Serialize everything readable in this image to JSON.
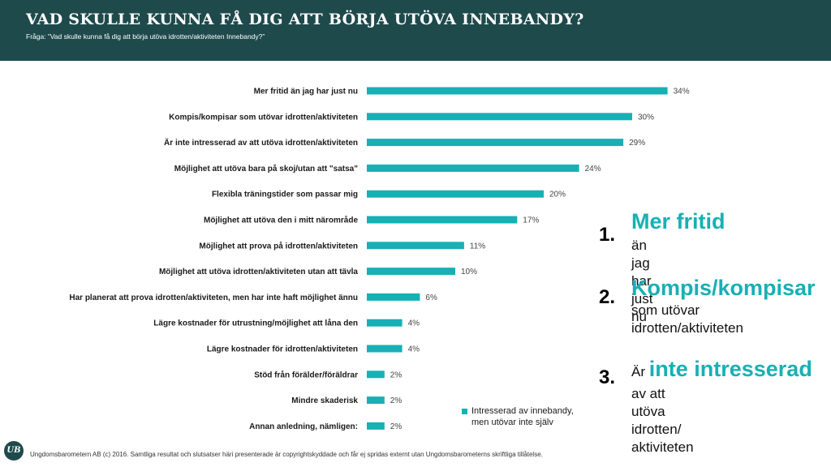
{
  "header": {
    "title": "VAD SKULLE KUNNA FÅ DIG ATT BÖRJA UTÖVA INNEBANDY?",
    "subtitle": "Fråga: ”Vad skulle kunna få dig att börja utöva idrotten/aktiviteten Innebandy?”"
  },
  "chart_data": {
    "type": "bar",
    "orientation": "horizontal",
    "categories": [
      "Mer fritid än jag har just nu",
      "Kompis/kompisar som utövar idrotten/aktiviteten",
      "Är inte intresserad av att utöva idrotten/aktiviteten",
      "Möjlighet att utöva bara på skoj/utan att \"satsa\"",
      "Flexibla träningstider som passar mig",
      "Möjlighet att utöva den i mitt närområde",
      "Möjlighet att  prova på idrotten/aktiviteten",
      "Möjlighet att utöva idrotten/aktiviteten utan att tävla",
      "Har planerat att prova idrotten/aktiviteten, men har inte haft möjlighet ännu",
      "Lägre kostnader för  utrustning/möjlighet att låna den",
      "Lägre kostnader för idrotten/aktiviteten",
      "Stöd från förälder/föräldrar",
      "Mindre skaderisk",
      "Annan anledning, nämligen:"
    ],
    "series": [
      {
        "name": "Intresserad av innebandy, men utövar inte själv",
        "values": [
          34,
          30,
          29,
          24,
          20,
          17,
          11,
          10,
          6,
          4,
          4,
          2,
          2,
          2
        ],
        "labels": [
          "34%",
          "30%",
          "29%",
          "24%",
          "20%",
          "17%",
          "11%",
          "10%",
          "6%",
          "4%",
          "4%",
          "2%",
          "2%",
          "2%"
        ],
        "color": "#17b0b4"
      }
    ],
    "xlim": [
      0,
      40
    ],
    "grid": false,
    "legend_position": "bottom-right"
  },
  "legend": {
    "line1": "Intresserad av innebandy,",
    "line2": "men utövar inte själv"
  },
  "ranking": [
    {
      "num": "1.",
      "prefix": "",
      "head": "Mer fritid",
      "sub": [
        "än jag har just nu"
      ]
    },
    {
      "num": "2.",
      "prefix": "",
      "head": "Kompis/kompisar",
      "sub": [
        "som utövar",
        "idrotten/aktiviteten"
      ]
    },
    {
      "num": "3.",
      "prefix": "Är ",
      "head": "inte intresserad",
      "sub": [
        "av att utöva idrotten/",
        "aktiviteten"
      ]
    }
  ],
  "footer": {
    "logo": "UB",
    "text": "Ungdomsbarometern AB (c) 2016. Samtliga resultat och slutsatser häri presenterade är copyrightskyddade och får ej spridas externt utan Ungdomsbarometerns skriftliga tillåtelse."
  },
  "colors": {
    "header_bg": "#1f4a4c",
    "accent": "#17b0b4"
  }
}
